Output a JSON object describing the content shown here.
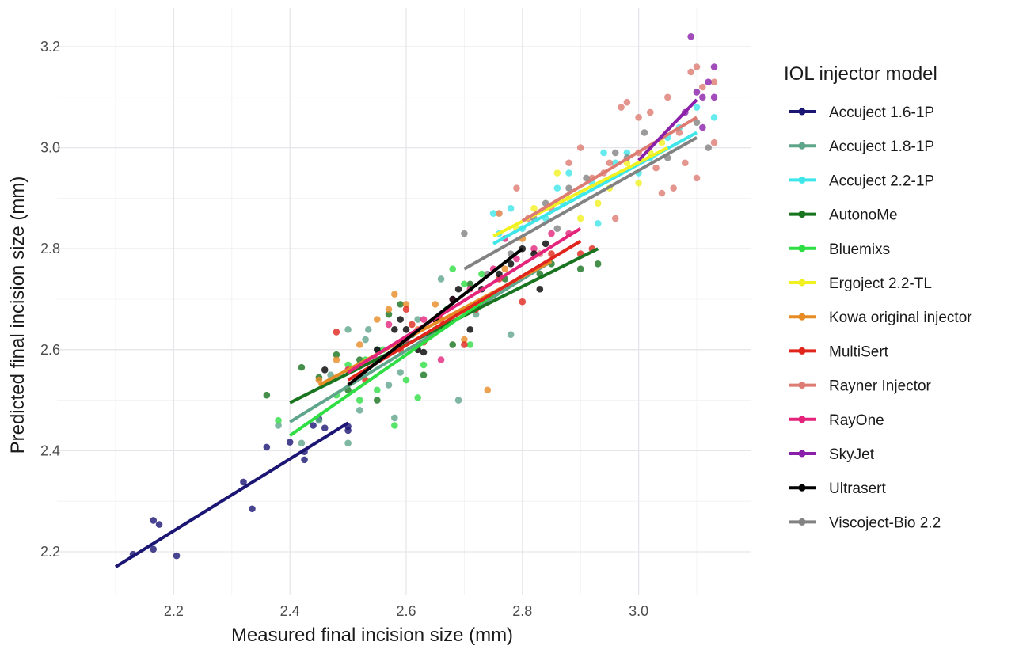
{
  "chart_data": {
    "type": "scatter",
    "title": "",
    "xlabel": "Measured final incision size (mm)",
    "ylabel": "Predicted final incision size (mm)",
    "xlim": [
      2.1,
      3.15
    ],
    "ylim": [
      2.15,
      3.25
    ],
    "x_ticks": [
      2.2,
      2.4,
      2.6,
      2.8,
      3.0
    ],
    "x_tick_labels": [
      "2.2",
      "2.4",
      "2.6",
      "2.8",
      "3.0"
    ],
    "y_ticks": [
      2.2,
      2.4,
      2.6,
      2.8,
      3.0,
      3.2
    ],
    "y_tick_labels": [
      "2.2",
      "2.4",
      "2.6",
      "2.8",
      "3.0",
      "3.2"
    ],
    "grid": true,
    "legend_title": "IOL injector model",
    "legend_position": "right",
    "series": [
      {
        "name": "Accuject 1.6-1P",
        "color": "#1b1574",
        "fit": [
          [
            2.1,
            2.17
          ],
          [
            2.5,
            2.455
          ]
        ],
        "points": [
          [
            2.13,
            2.195
          ],
          [
            2.165,
            2.205
          ],
          [
            2.165,
            2.262
          ],
          [
            2.175,
            2.254
          ],
          [
            2.205,
            2.192
          ],
          [
            2.32,
            2.338
          ],
          [
            2.335,
            2.285
          ],
          [
            2.36,
            2.407
          ],
          [
            2.4,
            2.417
          ],
          [
            2.425,
            2.382
          ],
          [
            2.425,
            2.398
          ],
          [
            2.44,
            2.45
          ],
          [
            2.45,
            2.463
          ],
          [
            2.5,
            2.44
          ],
          [
            2.5,
            2.448
          ],
          [
            2.46,
            2.445
          ]
        ]
      },
      {
        "name": "Accuject 1.8-1P",
        "color": "#5fa58c",
        "fit": [
          [
            2.4,
            2.457
          ],
          [
            2.85,
            2.775
          ]
        ],
        "points": [
          [
            2.38,
            2.45
          ],
          [
            2.42,
            2.415
          ],
          [
            2.45,
            2.46
          ],
          [
            2.5,
            2.415
          ],
          [
            2.5,
            2.64
          ],
          [
            2.52,
            2.48
          ],
          [
            2.53,
            2.62
          ],
          [
            2.535,
            2.64
          ],
          [
            2.57,
            2.53
          ],
          [
            2.58,
            2.465
          ],
          [
            2.59,
            2.555
          ],
          [
            2.62,
            2.66
          ],
          [
            2.64,
            2.63
          ],
          [
            2.66,
            2.74
          ],
          [
            2.69,
            2.5
          ],
          [
            2.72,
            2.67
          ],
          [
            2.75,
            2.71
          ],
          [
            2.78,
            2.63
          ],
          [
            2.47,
            2.55
          ],
          [
            2.55,
            2.6
          ]
        ]
      },
      {
        "name": "Accuject 2.2-1P",
        "color": "#3ee6ea",
        "fit": [
          [
            2.75,
            2.81
          ],
          [
            3.1,
            3.03
          ]
        ],
        "points": [
          [
            2.75,
            2.87
          ],
          [
            2.76,
            2.83
          ],
          [
            2.78,
            2.88
          ],
          [
            2.8,
            2.84
          ],
          [
            2.84,
            2.86
          ],
          [
            2.86,
            2.92
          ],
          [
            2.87,
            2.89
          ],
          [
            2.88,
            2.95
          ],
          [
            2.9,
            2.91
          ],
          [
            2.92,
            2.93
          ],
          [
            2.93,
            2.85
          ],
          [
            2.94,
            2.99
          ],
          [
            2.96,
            2.97
          ],
          [
            2.98,
            2.99
          ],
          [
            3.0,
            2.95
          ],
          [
            3.02,
            2.98
          ],
          [
            3.05,
            3.02
          ],
          [
            3.07,
            3.04
          ],
          [
            3.1,
            3.08
          ],
          [
            3.13,
            3.06
          ]
        ]
      },
      {
        "name": "AutonoMe",
        "color": "#18741f",
        "fit": [
          [
            2.4,
            2.495
          ],
          [
            2.93,
            2.8
          ]
        ],
        "points": [
          [
            2.36,
            2.51
          ],
          [
            2.42,
            2.565
          ],
          [
            2.45,
            2.545
          ],
          [
            2.48,
            2.59
          ],
          [
            2.5,
            2.52
          ],
          [
            2.52,
            2.58
          ],
          [
            2.55,
            2.5
          ],
          [
            2.57,
            2.67
          ],
          [
            2.59,
            2.69
          ],
          [
            2.61,
            2.63
          ],
          [
            2.63,
            2.55
          ],
          [
            2.65,
            2.66
          ],
          [
            2.68,
            2.61
          ],
          [
            2.71,
            2.73
          ],
          [
            2.73,
            2.69
          ],
          [
            2.77,
            2.74
          ],
          [
            2.83,
            2.75
          ],
          [
            2.85,
            2.77
          ],
          [
            2.9,
            2.76
          ],
          [
            2.93,
            2.77
          ]
        ]
      },
      {
        "name": "Bluemixs",
        "color": "#2fde43",
        "fit": [
          [
            2.4,
            2.43
          ],
          [
            2.75,
            2.71
          ]
        ],
        "points": [
          [
            2.38,
            2.46
          ],
          [
            2.48,
            2.51
          ],
          [
            2.5,
            2.57
          ],
          [
            2.52,
            2.5
          ],
          [
            2.53,
            2.58
          ],
          [
            2.56,
            2.6
          ],
          [
            2.58,
            2.45
          ],
          [
            2.6,
            2.54
          ],
          [
            2.62,
            2.505
          ],
          [
            2.63,
            2.57
          ],
          [
            2.65,
            2.64
          ],
          [
            2.67,
            2.68
          ],
          [
            2.68,
            2.76
          ],
          [
            2.7,
            2.73
          ],
          [
            2.71,
            2.61
          ],
          [
            2.73,
            2.75
          ],
          [
            2.55,
            2.52
          ],
          [
            2.6,
            2.62
          ]
        ]
      },
      {
        "name": "Ergoject 2.2-TL",
        "color": "#f1f121",
        "fit": [
          [
            2.75,
            2.825
          ],
          [
            3.05,
            3.0
          ]
        ],
        "points": [
          [
            2.76,
            2.87
          ],
          [
            2.79,
            2.84
          ],
          [
            2.82,
            2.88
          ],
          [
            2.86,
            2.95
          ],
          [
            2.88,
            2.9
          ],
          [
            2.9,
            2.86
          ],
          [
            2.93,
            2.89
          ],
          [
            2.95,
            2.92
          ],
          [
            2.98,
            2.97
          ],
          [
            3.0,
            2.93
          ],
          [
            3.02,
            2.99
          ],
          [
            3.04,
            3.01
          ]
        ]
      },
      {
        "name": "Kowa original injector",
        "color": "#e78b24",
        "fit": [
          [
            2.45,
            2.53
          ],
          [
            2.85,
            2.775
          ]
        ],
        "points": [
          [
            2.45,
            2.54
          ],
          [
            2.48,
            2.58
          ],
          [
            2.52,
            2.61
          ],
          [
            2.55,
            2.66
          ],
          [
            2.57,
            2.68
          ],
          [
            2.58,
            2.71
          ],
          [
            2.6,
            2.69
          ],
          [
            2.65,
            2.69
          ],
          [
            2.7,
            2.62
          ],
          [
            2.74,
            2.52
          ],
          [
            2.77,
            2.76
          ],
          [
            2.8,
            2.82
          ],
          [
            2.5,
            2.56
          ],
          [
            2.62,
            2.64
          ]
        ]
      },
      {
        "name": "MultiSert",
        "color": "#e0251d",
        "fit": [
          [
            2.5,
            2.54
          ],
          [
            2.9,
            2.815
          ]
        ],
        "points": [
          [
            2.48,
            2.635
          ],
          [
            2.53,
            2.54
          ],
          [
            2.59,
            2.6
          ],
          [
            2.61,
            2.65
          ],
          [
            2.63,
            2.615
          ],
          [
            2.66,
            2.66
          ],
          [
            2.7,
            2.61
          ],
          [
            2.72,
            2.68
          ],
          [
            2.76,
            2.74
          ],
          [
            2.8,
            2.695
          ],
          [
            2.85,
            2.79
          ],
          [
            2.9,
            2.79
          ],
          [
            2.92,
            2.8
          ],
          [
            2.6,
            2.68
          ]
        ]
      },
      {
        "name": "Rayner Injector",
        "color": "#dd7c72",
        "fit": [
          [
            2.8,
            2.855
          ],
          [
            3.1,
            3.06
          ]
        ],
        "points": [
          [
            2.76,
            2.87
          ],
          [
            2.79,
            2.92
          ],
          [
            2.81,
            2.86
          ],
          [
            2.85,
            2.88
          ],
          [
            2.88,
            2.97
          ],
          [
            2.9,
            3.0
          ],
          [
            2.92,
            2.94
          ],
          [
            2.95,
            2.97
          ],
          [
            2.97,
            3.08
          ],
          [
            2.98,
            3.09
          ],
          [
            3.0,
            3.06
          ],
          [
            3.02,
            3.07
          ],
          [
            3.05,
            3.1
          ],
          [
            3.07,
            3.03
          ],
          [
            3.09,
            3.15
          ],
          [
            3.1,
            3.16
          ],
          [
            3.11,
            3.12
          ],
          [
            3.13,
            3.13
          ],
          [
            3.0,
            2.99
          ],
          [
            3.03,
            2.96
          ],
          [
            3.06,
            2.92
          ],
          [
            3.1,
            2.94
          ],
          [
            2.96,
            2.86
          ],
          [
            3.04,
            2.91
          ],
          [
            3.13,
            3.01
          ],
          [
            2.94,
            2.95
          ],
          [
            2.83,
            2.79
          ],
          [
            3.08,
            2.97
          ]
        ]
      },
      {
        "name": "RayOne",
        "color": "#e4247b",
        "fit": [
          [
            2.5,
            2.555
          ],
          [
            2.9,
            2.84
          ]
        ],
        "points": [
          [
            2.5,
            2.56
          ],
          [
            2.55,
            2.58
          ],
          [
            2.57,
            2.65
          ],
          [
            2.6,
            2.62
          ],
          [
            2.63,
            2.66
          ],
          [
            2.66,
            2.58
          ],
          [
            2.68,
            2.7
          ],
          [
            2.71,
            2.72
          ],
          [
            2.75,
            2.76
          ],
          [
            2.77,
            2.82
          ],
          [
            2.79,
            2.78
          ],
          [
            2.82,
            2.8
          ],
          [
            2.85,
            2.83
          ],
          [
            2.88,
            2.83
          ]
        ]
      },
      {
        "name": "SkyJet",
        "color": "#8a1fa9",
        "fit": [
          [
            3.0,
            2.975
          ],
          [
            3.1,
            3.095
          ]
        ],
        "points": [
          [
            3.09,
            3.22
          ],
          [
            3.1,
            3.11
          ],
          [
            3.11,
            3.04
          ],
          [
            3.12,
            3.13
          ],
          [
            3.13,
            3.16
          ],
          [
            3.13,
            3.1
          ],
          [
            3.08,
            3.07
          ],
          [
            3.11,
            3.1
          ]
        ]
      },
      {
        "name": "Ultrasert",
        "color": "#000000",
        "fit": [
          [
            2.5,
            2.53
          ],
          [
            2.8,
            2.8
          ]
        ],
        "points": [
          [
            2.46,
            2.56
          ],
          [
            2.55,
            2.6
          ],
          [
            2.58,
            2.64
          ],
          [
            2.59,
            2.66
          ],
          [
            2.6,
            2.64
          ],
          [
            2.62,
            2.6
          ],
          [
            2.63,
            2.595
          ],
          [
            2.68,
            2.7
          ],
          [
            2.71,
            2.64
          ],
          [
            2.73,
            2.72
          ],
          [
            2.76,
            2.75
          ],
          [
            2.78,
            2.77
          ],
          [
            2.8,
            2.8
          ],
          [
            2.82,
            2.79
          ],
          [
            2.84,
            2.81
          ],
          [
            2.83,
            2.72
          ],
          [
            2.69,
            2.72
          ],
          [
            2.65,
            2.66
          ]
        ]
      },
      {
        "name": "Viscoject-Bio 2.2",
        "color": "#828282",
        "fit": [
          [
            2.7,
            2.76
          ],
          [
            3.1,
            3.02
          ]
        ],
        "points": [
          [
            2.7,
            2.83
          ],
          [
            2.74,
            2.75
          ],
          [
            2.78,
            2.79
          ],
          [
            2.82,
            2.86
          ],
          [
            2.84,
            2.89
          ],
          [
            2.88,
            2.92
          ],
          [
            2.91,
            2.94
          ],
          [
            2.96,
            2.99
          ],
          [
            2.98,
            2.98
          ],
          [
            3.01,
            3.03
          ],
          [
            3.05,
            2.98
          ],
          [
            3.1,
            3.05
          ],
          [
            3.12,
            3.0
          ],
          [
            2.86,
            2.84
          ]
        ]
      }
    ]
  }
}
